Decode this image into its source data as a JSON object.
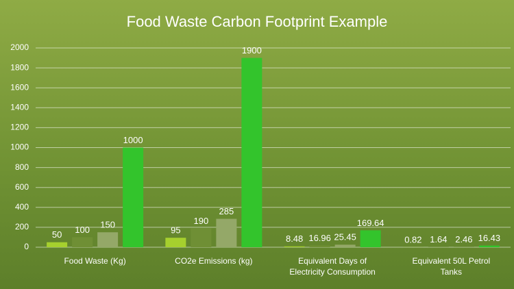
{
  "chart_data": {
    "type": "bar",
    "title": "Food Waste Carbon Footprint Example",
    "categories": [
      "Food Waste (Kg)",
      "CO2e Emissions (kg)",
      "Equivalent Days of Electricity Consumption",
      "Equivalent 50L Petrol Tanks"
    ],
    "series": [
      {
        "color": "#a6d02e",
        "values": [
          50,
          95,
          8.48,
          0.82
        ]
      },
      {
        "color": "#6f8f35",
        "values": [
          100,
          190,
          16.96,
          1.64
        ]
      },
      {
        "color": "#94a868",
        "values": [
          150,
          285,
          25.45,
          2.46
        ]
      },
      {
        "color": "#33c42c",
        "values": [
          1000,
          1900,
          169.64,
          16.43
        ]
      }
    ],
    "ylim": [
      0,
      2000
    ],
    "yticks": [
      0,
      200,
      400,
      600,
      800,
      1000,
      1200,
      1400,
      1600,
      1800,
      2000
    ],
    "grid": true
  }
}
